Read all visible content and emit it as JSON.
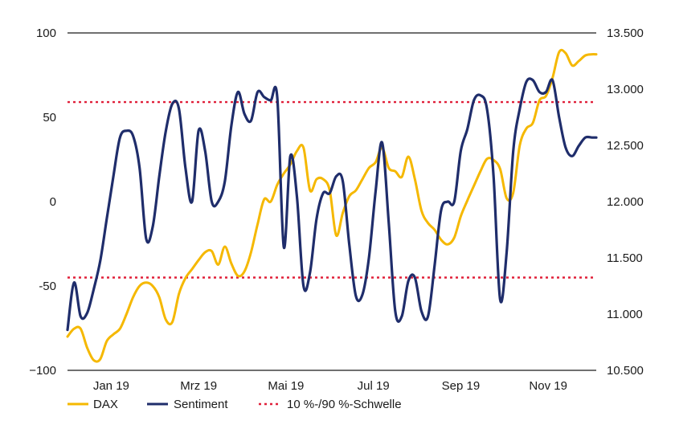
{
  "chart_data": {
    "type": "line",
    "title": "",
    "xlabel": "",
    "ylabel": "",
    "x_ticks": [
      "Jan 19",
      "Mrz 19",
      "Mai 19",
      "Jul 19",
      "Sep 19",
      "Nov 19"
    ],
    "x_range": [
      0,
      12.1
    ],
    "x_tick_positions": [
      1,
      3,
      5,
      7,
      9,
      11
    ],
    "y_left": {
      "ticks": [
        "100",
        "50",
        "0",
        "-50",
        "−100"
      ],
      "tick_values": [
        100,
        50,
        0,
        -50,
        -100
      ],
      "range": [
        -100,
        100
      ]
    },
    "y_right": {
      "ticks": [
        "13.500",
        "13.000",
        "12.500",
        "12.000",
        "11.500",
        "11.000",
        "10.500"
      ],
      "tick_values": [
        13500,
        13000,
        12500,
        12000,
        11500,
        11000,
        10500
      ],
      "range": [
        10500,
        13500
      ]
    },
    "grid": false,
    "legend_position": "bottom",
    "colors": {
      "dax": "#f5b800",
      "sentiment": "#1f2d6b",
      "threshold": "#e0203a",
      "axis": "#1a1a1a"
    },
    "series": [
      {
        "name": "DAX",
        "axis": "right",
        "x": [
          0.0,
          0.15,
          0.3,
          0.45,
          0.6,
          0.75,
          0.9,
          1.05,
          1.2,
          1.35,
          1.5,
          1.65,
          1.8,
          1.95,
          2.1,
          2.25,
          2.4,
          2.55,
          2.7,
          2.85,
          3.0,
          3.15,
          3.3,
          3.45,
          3.6,
          3.75,
          3.9,
          4.05,
          4.2,
          4.35,
          4.5,
          4.65,
          4.8,
          4.95,
          5.1,
          5.25,
          5.4,
          5.55,
          5.7,
          5.85,
          6.0,
          6.15,
          6.3,
          6.45,
          6.6,
          6.75,
          6.9,
          7.05,
          7.2,
          7.35,
          7.5,
          7.65,
          7.8,
          7.95,
          8.1,
          8.25,
          8.4,
          8.55,
          8.7,
          8.85,
          9.0,
          9.15,
          9.3,
          9.45,
          9.6,
          9.75,
          9.9,
          10.05,
          10.2,
          10.35,
          10.5,
          10.65,
          10.8,
          10.95,
          11.1,
          11.25,
          11.4,
          11.55,
          11.7,
          11.85,
          12.0,
          12.1
        ],
        "values": [
          10800,
          10870,
          10870,
          10700,
          10590,
          10600,
          10760,
          10820,
          10870,
          11000,
          11150,
          11250,
          11280,
          11250,
          11150,
          10950,
          10930,
          11180,
          11320,
          11400,
          11480,
          11550,
          11560,
          11440,
          11600,
          11450,
          11340,
          11380,
          11550,
          11800,
          12020,
          12000,
          12150,
          12250,
          12330,
          12450,
          12480,
          12100,
          12200,
          12200,
          12100,
          11700,
          11900,
          12050,
          12100,
          12200,
          12300,
          12350,
          12480,
          12300,
          12270,
          12220,
          12400,
          12200,
          11920,
          11810,
          11750,
          11660,
          11620,
          11680,
          11870,
          12010,
          12140,
          12270,
          12380,
          12370,
          12290,
          12030,
          12080,
          12500,
          12650,
          12700,
          12900,
          12940,
          13100,
          13330,
          13320,
          13210,
          13250,
          13300,
          13310,
          13310
        ]
      },
      {
        "name": "Sentiment",
        "axis": "left",
        "x": [
          0.0,
          0.15,
          0.3,
          0.45,
          0.6,
          0.75,
          0.9,
          1.05,
          1.2,
          1.35,
          1.5,
          1.65,
          1.8,
          1.95,
          2.1,
          2.25,
          2.4,
          2.55,
          2.7,
          2.85,
          3.0,
          3.15,
          3.3,
          3.45,
          3.6,
          3.75,
          3.9,
          4.05,
          4.2,
          4.35,
          4.5,
          4.65,
          4.8,
          4.95,
          5.1,
          5.25,
          5.4,
          5.55,
          5.7,
          5.85,
          6.0,
          6.15,
          6.3,
          6.45,
          6.6,
          6.75,
          6.9,
          7.05,
          7.2,
          7.35,
          7.5,
          7.65,
          7.8,
          7.95,
          8.1,
          8.25,
          8.4,
          8.55,
          8.7,
          8.85,
          9.0,
          9.15,
          9.3,
          9.45,
          9.6,
          9.75,
          9.9,
          10.05,
          10.2,
          10.35,
          10.5,
          10.65,
          10.8,
          10.95,
          11.1,
          11.25,
          11.4,
          11.55,
          11.7,
          11.85,
          12.0,
          12.1
        ],
        "values": [
          -76,
          -48,
          -68,
          -66,
          -52,
          -35,
          -10,
          15,
          38,
          42,
          39,
          20,
          -22,
          -15,
          15,
          42,
          58,
          55,
          20,
          0,
          42,
          30,
          0,
          0,
          12,
          45,
          65,
          52,
          48,
          65,
          62,
          60,
          62,
          -27,
          27,
          3,
          -50,
          -42,
          -10,
          5,
          5,
          15,
          12,
          -26,
          -56,
          -55,
          -33,
          6,
          35,
          -12,
          -65,
          -68,
          -47,
          -45,
          -65,
          -68,
          -38,
          -5,
          0,
          0,
          30,
          43,
          60,
          63,
          55,
          15,
          -58,
          -30,
          30,
          55,
          71,
          72,
          65,
          65,
          72,
          50,
          32,
          27,
          33,
          38,
          38,
          38
        ]
      },
      {
        "name": "10 %-/90 %-Schwelle",
        "axis": "left",
        "values": [
          59,
          -45
        ]
      }
    ],
    "legend": [
      "DAX",
      "Sentiment",
      "10 %-/90 %-Schwelle"
    ]
  }
}
